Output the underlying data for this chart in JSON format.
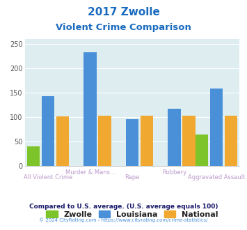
{
  "title_line1": "2017 Zwolle",
  "title_line2": "Violent Crime Comparison",
  "categories": [
    "All Violent Crime",
    "Murder & Mans...",
    "Rape",
    "Robbery",
    "Aggravated Assault"
  ],
  "zwolle": [
    40,
    0,
    0,
    0,
    64
  ],
  "louisiana": [
    143,
    233,
    96,
    117,
    158
  ],
  "national": [
    101,
    102,
    102,
    102,
    102
  ],
  "bar_colors": {
    "zwolle": "#7dc42a",
    "louisiana": "#4a90d9",
    "national": "#f0a830"
  },
  "ylim": [
    0,
    260
  ],
  "yticks": [
    0,
    50,
    100,
    150,
    200,
    250
  ],
  "plot_bg": "#deeef0",
  "title_color": "#1a6bbf",
  "xlabel_color_top": "#9988aa",
  "xlabel_color_bot": "#aa88bb",
  "legend_labels": [
    "Zwolle",
    "Louisiana",
    "National"
  ],
  "legend_text_color": "#222222",
  "footnote1": "Compared to U.S. average. (U.S. average equals 100)",
  "footnote2": "© 2024 CityRating.com - https://www.cityrating.com/crime-statistics/",
  "footnote1_color": "#1a1a6b",
  "footnote2_color": "#4a90d9"
}
